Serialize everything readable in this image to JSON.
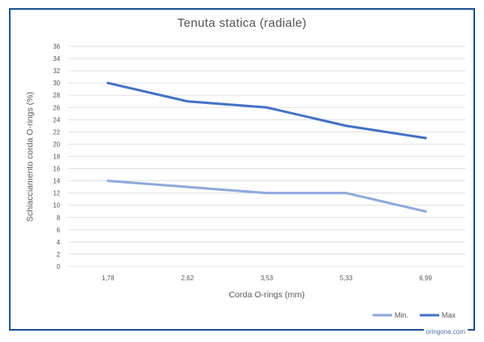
{
  "chart_data": {
    "type": "line",
    "title": "Tenuta statica (radiale)",
    "xlabel": "Corda  O-rings (mm)",
    "ylabel": "Schiacciamento  corda  O-rings (%)",
    "categories": [
      "1,78",
      "2,62",
      "3,53",
      "5,33",
      "6,99"
    ],
    "ylim": [
      0,
      36
    ],
    "yticks": [
      0,
      2,
      4,
      6,
      8,
      10,
      12,
      14,
      16,
      18,
      20,
      22,
      24,
      26,
      28,
      30,
      32,
      34,
      36
    ],
    "grid": true,
    "legend_position": "bottom-right",
    "series": [
      {
        "name": "Min.",
        "values": [
          14,
          13,
          12,
          12,
          9
        ],
        "color": "#8faadc"
      },
      {
        "name": "Max",
        "values": [
          30,
          27,
          26,
          23,
          21
        ],
        "color": "#4472c4"
      }
    ]
  },
  "watermark": "oringone.com",
  "colors": {
    "frame": "#1e4f91",
    "grid": "#d9d9d9",
    "text": "#595959"
  }
}
